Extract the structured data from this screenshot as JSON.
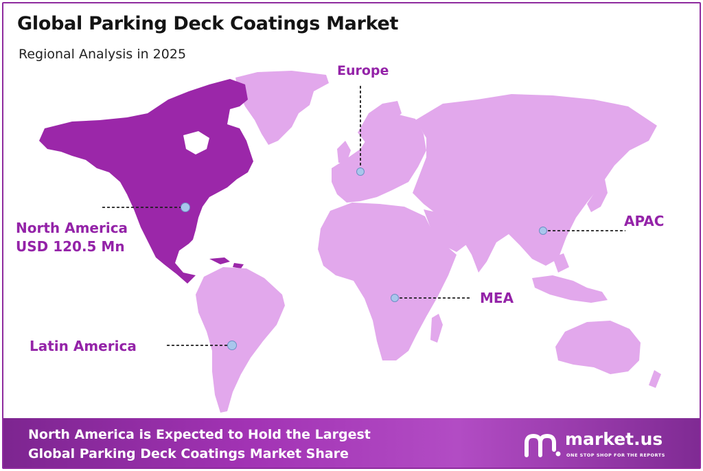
{
  "header": {
    "title": "Global Parking Deck Coatings Market",
    "subtitle": "Regional Analysis in 2025"
  },
  "regions": {
    "north_america": {
      "name": "North America",
      "value": "USD 120.5 Mn",
      "highlighted": true
    },
    "europe": {
      "name": "Europe"
    },
    "apac": {
      "name": "APAC"
    },
    "mea": {
      "name": "MEA"
    },
    "latin_america": {
      "name": "Latin America"
    }
  },
  "footer": {
    "line1": "North America is Expected to Hold the Largest",
    "line2": "Global Parking Deck Coatings Market Share"
  },
  "brand": {
    "name": "market.us",
    "tagline": "ONE STOP SHOP FOR THE REPORTS"
  },
  "colors": {
    "highlight_region": "#9b27a9",
    "other_regions": "#e2a8ec",
    "label_text": "#9423a8",
    "marker": "#a9c6ec",
    "footer": "#a233b4"
  }
}
